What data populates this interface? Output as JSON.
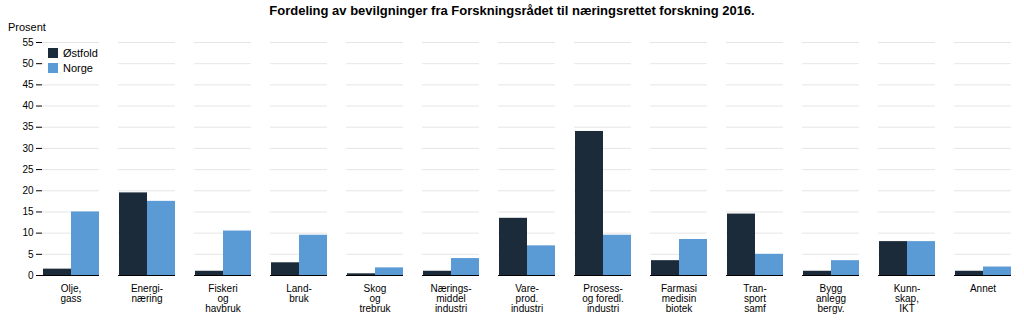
{
  "chart_data": {
    "type": "bar",
    "title": "Fordeling av bevilgninger fra Forskningsrådet til næringsrettet forskning 2016.",
    "ylabel": "Prosent",
    "categories": [
      "Olje,\ngass",
      "Energi-\nnæring",
      "Fiskeri\nog\nhavbruk",
      "Land-\nbruk",
      "Skog\nog\ntrebruk",
      "Nærings-\nmiddel\nindustri",
      "Vare-\nprod.\nindustri",
      "Prosess-\nog foredl.\nindustri",
      "Farmasi\nmedisin\nbiotek",
      "Tran-\nsport\nsamf",
      "Bygg\nanlegg\nbergv.",
      "Kunn-\nskap,\nIKT",
      "Annet"
    ],
    "series": [
      {
        "name": "Østfold",
        "color": "#1c2b3a",
        "values": [
          1.5,
          19.5,
          1.0,
          3.0,
          0.4,
          1.0,
          13.5,
          34.0,
          3.5,
          14.5,
          1.0,
          8.0,
          1.0
        ]
      },
      {
        "name": "Norge",
        "color": "#5b9bd5",
        "values": [
          15.0,
          17.5,
          10.5,
          9.5,
          1.8,
          4.0,
          7.0,
          9.5,
          8.5,
          5.0,
          3.5,
          8.0,
          2.0
        ]
      }
    ],
    "ylim": [
      0,
      55
    ],
    "yticks": [
      0,
      5,
      10,
      15,
      20,
      25,
      30,
      35,
      40,
      45,
      50,
      55
    ],
    "grid": true,
    "legend": "upper left"
  }
}
